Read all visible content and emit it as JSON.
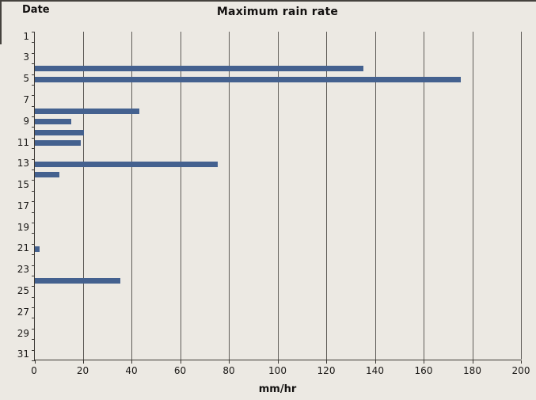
{
  "chart_data": {
    "type": "bar",
    "orientation": "horizontal",
    "title": "Maximum rain rate",
    "xlabel": "mm/hr",
    "ylabel": "Date",
    "categories": [
      1,
      2,
      3,
      4,
      5,
      6,
      7,
      8,
      9,
      10,
      11,
      12,
      13,
      14,
      15,
      16,
      17,
      18,
      19,
      20,
      21,
      22,
      23,
      24,
      25,
      26,
      27,
      28,
      29,
      30,
      31
    ],
    "values": [
      0,
      0,
      0,
      135,
      175,
      0,
      0,
      43,
      15,
      20,
      19,
      0,
      75,
      10,
      0,
      0,
      0,
      0,
      0,
      0,
      2,
      0,
      0,
      35,
      0,
      0,
      0,
      0,
      0,
      0,
      0
    ],
    "xlim": [
      0,
      200
    ],
    "xtick_step": 20,
    "xtick_labels": [
      "0",
      "20",
      "40",
      "60",
      "80",
      "100",
      "120",
      "140",
      "160",
      "180",
      "200"
    ],
    "ytick_labels_shown": [
      "1",
      "3",
      "5",
      "7",
      "9",
      "11",
      "13",
      "15",
      "17",
      "19",
      "21",
      "23",
      "25",
      "27",
      "29",
      "31"
    ],
    "ytick_label_step": 2,
    "grid": true,
    "legend": false,
    "colors": {
      "bar": "#44618F",
      "background": "#ECE9E3",
      "gridline": "#605D59",
      "axis": "#3B3834",
      "text": "#1A1816"
    }
  }
}
